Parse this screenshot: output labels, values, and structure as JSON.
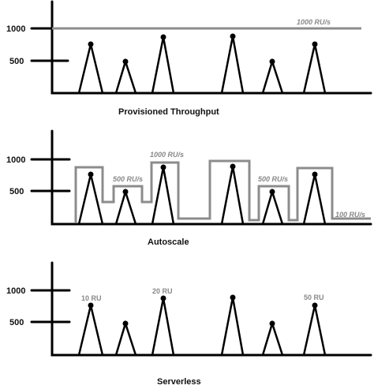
{
  "panels": [
    {
      "title": "Provisioned Throughput",
      "y_ticks": [
        "1000",
        "500"
      ],
      "annotations": [
        "1000 RU/s"
      ]
    },
    {
      "title": "Autoscale",
      "y_ticks": [
        "1000",
        "500"
      ],
      "annotations": [
        "500 RU/s",
        "1000 RU/s",
        "500 RU/s",
        "100 RU/s"
      ]
    },
    {
      "title": "Serverless",
      "y_ticks": [
        "1000",
        "500"
      ],
      "annotations": [
        "10 RU",
        "20 RU",
        "50 RU"
      ]
    }
  ],
  "colors": {
    "axis": "#000000",
    "capacity_line": "#8c8c8c",
    "annotation": "#888888"
  }
}
